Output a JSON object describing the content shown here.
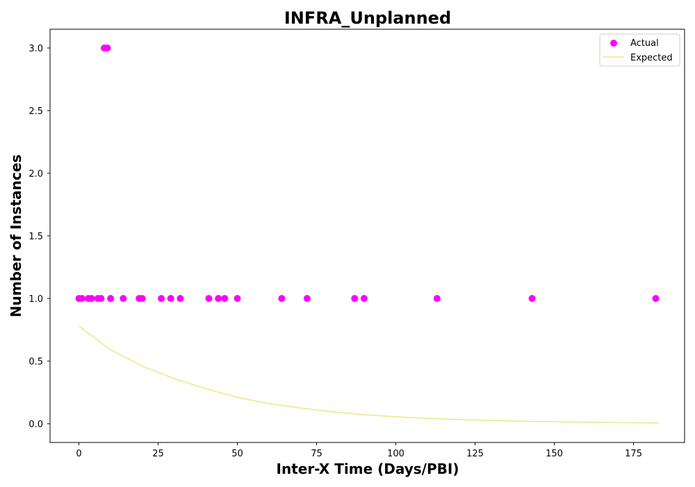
{
  "chart_data": {
    "type": "scatter",
    "title": "INFRA_Unplanned",
    "xlabel": "Inter-X Time (Days/PBI)",
    "ylabel": "Number of Instances",
    "xlim": [
      -9.1,
      191.1
    ],
    "ylim": [
      -0.15,
      3.15
    ],
    "xticks": [
      0,
      25,
      50,
      75,
      100,
      125,
      150,
      175
    ],
    "xtick_labels": [
      "0",
      "25",
      "50",
      "75",
      "100",
      "125",
      "150",
      "175"
    ],
    "yticks": [
      0.0,
      0.5,
      1.0,
      1.5,
      2.0,
      2.5,
      3.0
    ],
    "ytick_labels": [
      "0.0",
      "0.5",
      "1.0",
      "1.5",
      "2.0",
      "2.5",
      "3.0"
    ],
    "grid": false,
    "legend_position": "top-right",
    "series": [
      {
        "name": "Actual",
        "kind": "scatter",
        "color": "#ff00ff",
        "x": [
          0,
          1,
          3,
          4,
          6,
          7,
          8,
          9,
          10,
          14,
          19,
          20,
          26,
          29,
          32,
          41,
          44,
          46,
          50,
          64,
          72,
          87,
          90,
          113,
          143,
          182
        ],
        "y": [
          1,
          1,
          1,
          1,
          1,
          1,
          3,
          3,
          1,
          1,
          1,
          1,
          1,
          1,
          1,
          1,
          1,
          1,
          1,
          1,
          1,
          1,
          1,
          1,
          1,
          1
        ]
      },
      {
        "name": "Expected",
        "kind": "line",
        "color": "#f0e68c",
        "x": [
          0,
          10,
          20,
          30,
          40,
          50,
          60,
          70,
          80,
          90,
          100,
          110,
          120,
          130,
          140,
          150,
          160,
          170,
          183
        ],
        "y": [
          0.78,
          0.59,
          0.46,
          0.36,
          0.28,
          0.21,
          0.16,
          0.125,
          0.095,
          0.072,
          0.055,
          0.043,
          0.033,
          0.026,
          0.02,
          0.015,
          0.012,
          0.009,
          0.006
        ]
      }
    ]
  }
}
